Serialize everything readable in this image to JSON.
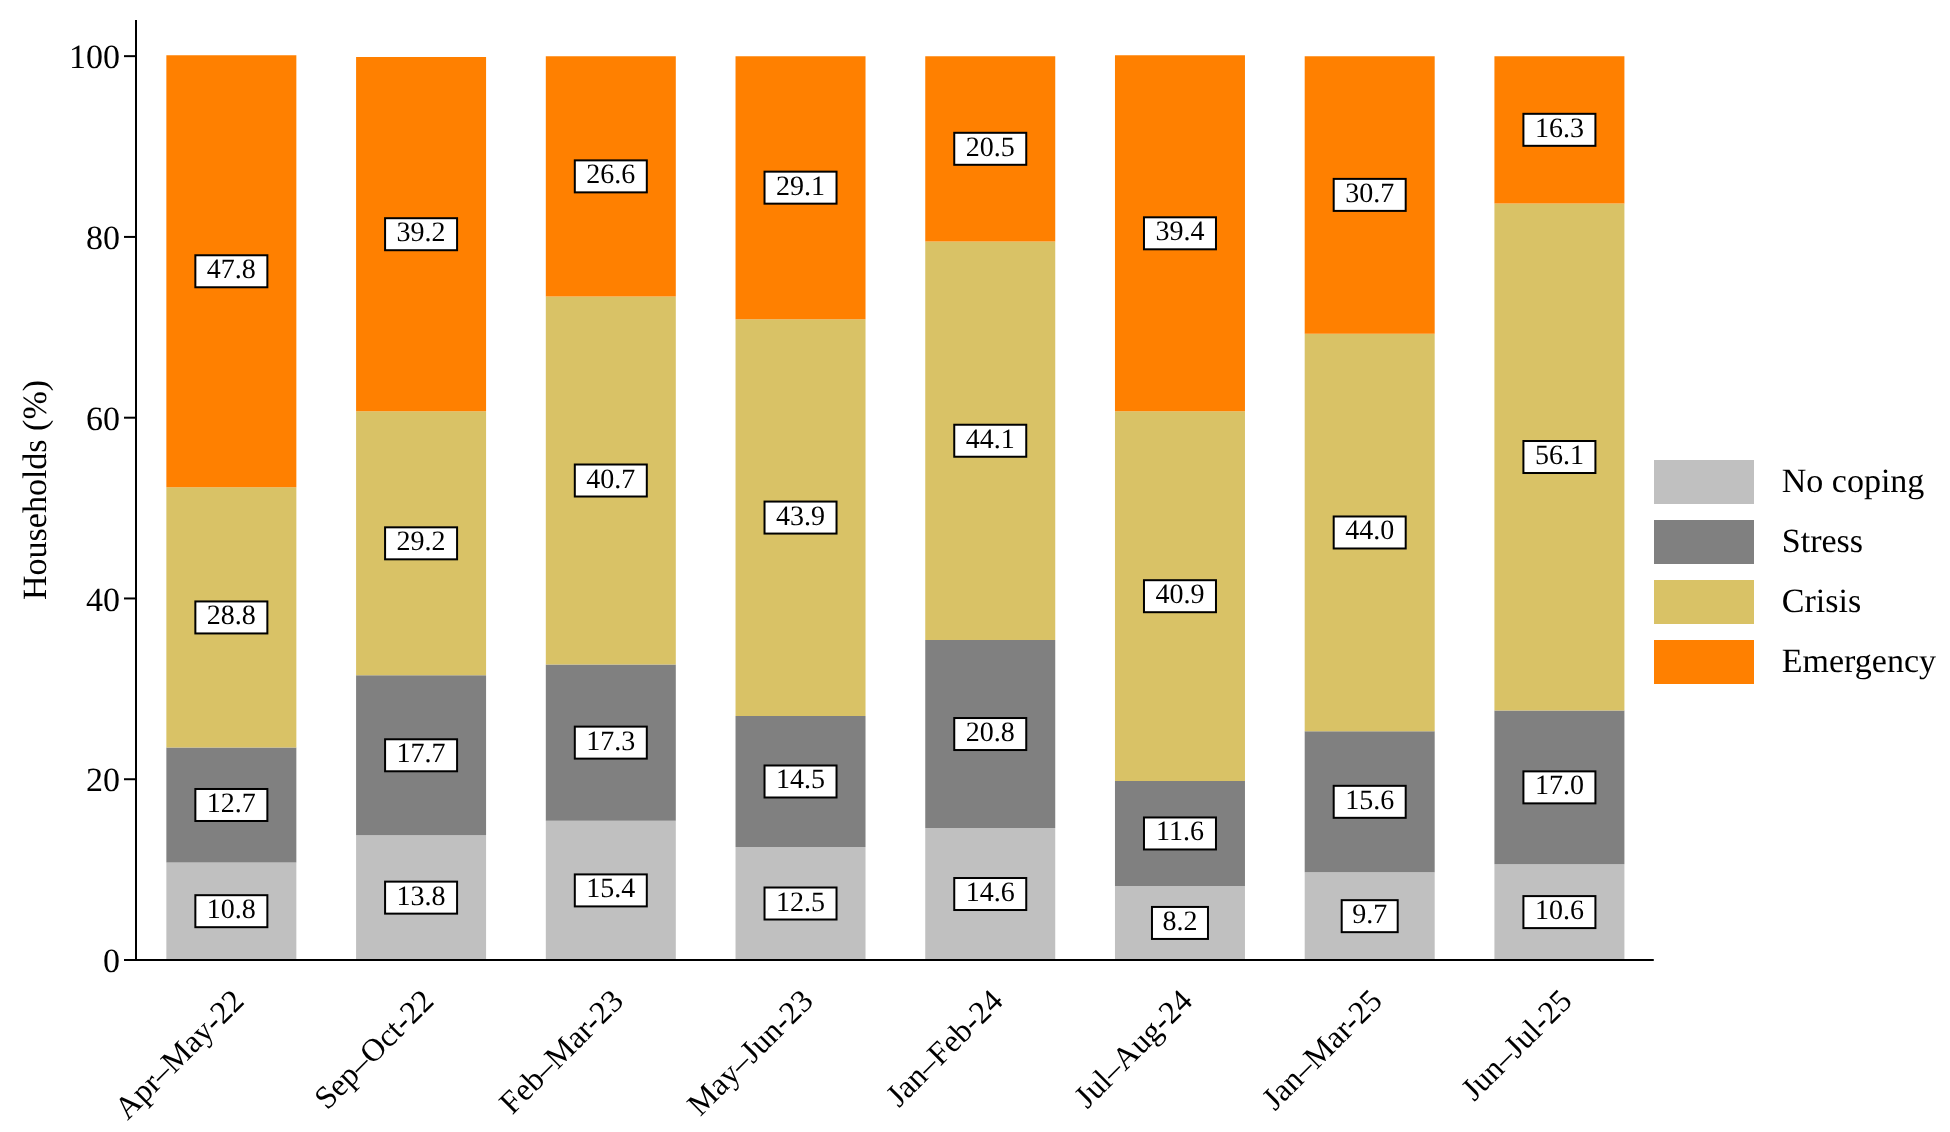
{
  "chart_data": {
    "type": "bar",
    "stacked": true,
    "ylabel": "Households (%)",
    "categories": [
      "Apr–May-22",
      "Sep–Oct-22",
      "Feb–Mar-23",
      "May–Jun-23",
      "Jan–Feb-24",
      "Jul–Aug-24",
      "Jan–Mar-25",
      "Jun–Jul-25"
    ],
    "series": [
      {
        "name": "No coping",
        "color": "#c0c0c0",
        "values": [
          10.8,
          13.8,
          15.4,
          12.5,
          14.6,
          8.2,
          9.7,
          10.6
        ],
        "value_labels": [
          "10.8",
          "13.8",
          "15.4",
          "12.5",
          "14.6",
          "8.2",
          "9.7",
          "10.6"
        ]
      },
      {
        "name": "Stress",
        "color": "#808080",
        "values": [
          12.7,
          17.7,
          17.3,
          14.5,
          20.8,
          11.6,
          15.6,
          17.0
        ],
        "value_labels": [
          "12.7",
          "17.7",
          "17.3",
          "14.5",
          "20.8",
          "11.6",
          "15.6",
          "17.0"
        ]
      },
      {
        "name": "Crisis",
        "color": "#d9c266",
        "values": [
          28.8,
          29.2,
          40.7,
          43.9,
          44.1,
          40.9,
          44.0,
          56.1
        ],
        "value_labels": [
          "28.8",
          "29.2",
          "40.7",
          "43.9",
          "44.1",
          "40.9",
          "44.0",
          "56.1"
        ]
      },
      {
        "name": "Emergency",
        "color": "#ff8000",
        "values": [
          47.8,
          39.2,
          26.6,
          29.1,
          20.5,
          39.4,
          30.7,
          16.3
        ],
        "value_labels": [
          "47.8",
          "39.2",
          "26.6",
          "29.1",
          "20.5",
          "39.4",
          "30.7",
          "16.3"
        ]
      }
    ],
    "ylim": [
      0,
      104
    ],
    "yticks": [
      0,
      20,
      40,
      60,
      80,
      100
    ],
    "grid": false,
    "legend": "right"
  }
}
